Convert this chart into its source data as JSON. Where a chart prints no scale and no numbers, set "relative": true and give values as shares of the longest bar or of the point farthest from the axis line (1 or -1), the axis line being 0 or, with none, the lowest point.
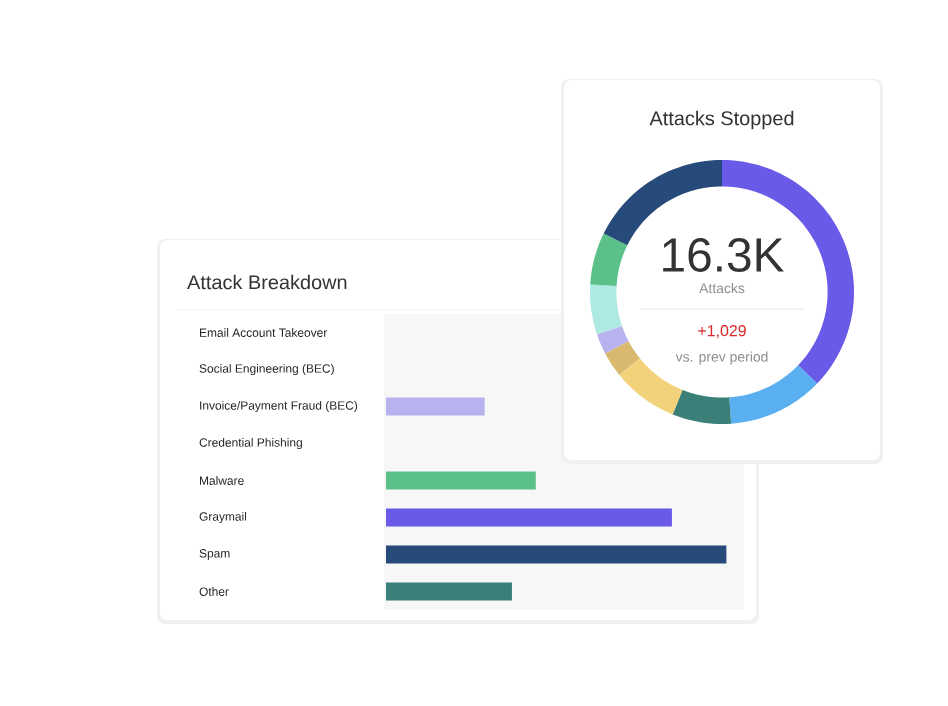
{
  "chart_data": [
    {
      "type": "bar",
      "orientation": "horizontal",
      "relative": true,
      "title": "Attack Breakdown",
      "categories": [
        "Email Account Takeover",
        "Social Engineering (BEC)",
        "Invoice/Payment Fraud (BEC)",
        "Credential Phishing",
        "Malware",
        "Graymail",
        "Spam",
        "Other"
      ],
      "values": [
        null,
        null,
        0.29,
        null,
        0.44,
        0.84,
        1,
        0.37
      ],
      "colors": [
        "#f2d27a",
        "#5aaff0",
        "#b8b3ee",
        "#aee9e3",
        "#5cc08a",
        "#6a5ae8",
        "#264a7a",
        "#3a7f78"
      ]
    },
    {
      "type": "donut",
      "title": "Attacks Stopped",
      "categories": [
        null,
        null,
        null,
        null,
        null,
        null,
        null,
        null,
        null
      ],
      "values": [
        37.2,
        11.7,
        7.2,
        8.1,
        3.1,
        2.5,
        6.1,
        6.4,
        17.7
      ],
      "colors": [
        "#6a5ae8",
        "#5aaff0",
        "#3a7f78",
        "#f2d27a",
        "#d8b96e",
        "#b8b3ee",
        "#aee9e3",
        "#5cc08a",
        "#264a7a"
      ],
      "annotations": [
        "16.3K",
        "Attacks",
        "+1,029",
        "vs. prev period"
      ]
    }
  ]
}
